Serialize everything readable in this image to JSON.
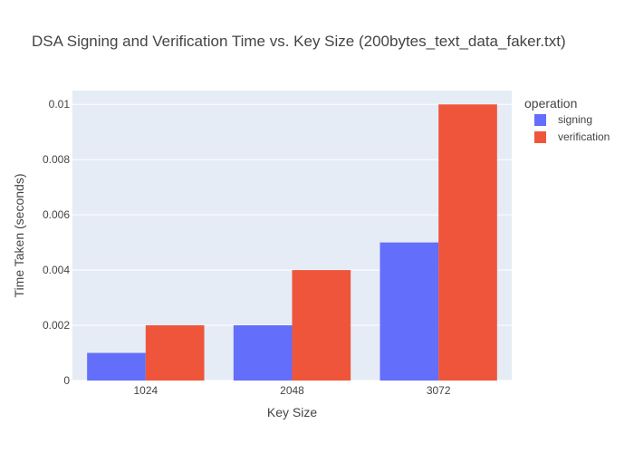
{
  "chart_data": {
    "type": "bar",
    "title": "DSA Signing and Verification Time vs. Key Size (200bytes_text_data_faker.txt)",
    "xlabel": "Key Size",
    "ylabel": "Time Taken (seconds)",
    "categories": [
      "1024",
      "2048",
      "3072"
    ],
    "series": [
      {
        "name": "signing",
        "values": [
          0.001,
          0.002,
          0.005
        ],
        "color": "#636efa"
      },
      {
        "name": "verification",
        "values": [
          0.002,
          0.004,
          0.01
        ],
        "color": "#ef553b"
      }
    ],
    "ylim": [
      0,
      0.0105
    ],
    "yticks": [
      0,
      0.002,
      0.004,
      0.006,
      0.008,
      0.01
    ],
    "ytick_labels": [
      "0",
      "0.002",
      "0.004",
      "0.006",
      "0.008",
      "0.01"
    ],
    "legend": {
      "title": "operation",
      "placement": "right"
    },
    "grid": true,
    "plot_bg": "#e5ecf6"
  }
}
